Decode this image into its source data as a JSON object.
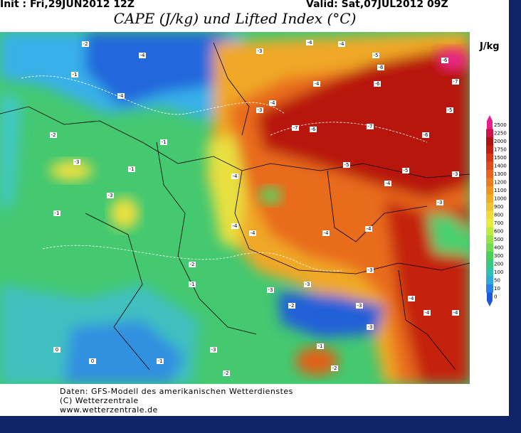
{
  "header": {
    "init": "Init : Fri,29JUN2012 12Z",
    "valid": "Valid: Sat,07JUL2012 09Z",
    "title": "CAPE (J/kg) und Lifted Index (°C)"
  },
  "legend": {
    "unit": "J/kg",
    "ticks": [
      2500,
      2250,
      2000,
      1750,
      1500,
      1400,
      1300,
      1200,
      1100,
      1000,
      900,
      800,
      700,
      600,
      500,
      400,
      300,
      200,
      100,
      50,
      10,
      0
    ],
    "colors": [
      "#e8208c",
      "#d0104a",
      "#b01010",
      "#c81c10",
      "#d83414",
      "#e04c18",
      "#e8641c",
      "#ec7c20",
      "#f09424",
      "#f0ac28",
      "#f0c430",
      "#f0dc38",
      "#e8ec40",
      "#c0ec40",
      "#98e448",
      "#70dc50",
      "#48d058",
      "#38c880",
      "#30c0b0",
      "#30a8e0",
      "#2880e8",
      "#1c58d8"
    ]
  },
  "map": {
    "li_labels": [
      -2,
      -4,
      -1,
      -4,
      -3,
      -4,
      -4,
      -5,
      -6,
      -6,
      -7,
      -6,
      -4,
      -4,
      -3,
      -7,
      -6,
      -7,
      -6,
      -5,
      -2,
      -3,
      -1,
      -1,
      -3,
      -1,
      -4,
      -5,
      -4,
      -5,
      -4,
      -4,
      -4,
      -4,
      -3,
      -3,
      -2,
      -1,
      -3,
      -3,
      -4,
      -4,
      -4,
      -3,
      -3,
      -1,
      0,
      0,
      -2,
      -1,
      -2,
      -3,
      -2,
      -3
    ]
  },
  "footer": {
    "line1": "Daten: GFS-Modell des amerikanischen Wetterdienstes",
    "line2": "(C) Wetterzentrale",
    "line3": "www.wetterzentrale.de"
  }
}
